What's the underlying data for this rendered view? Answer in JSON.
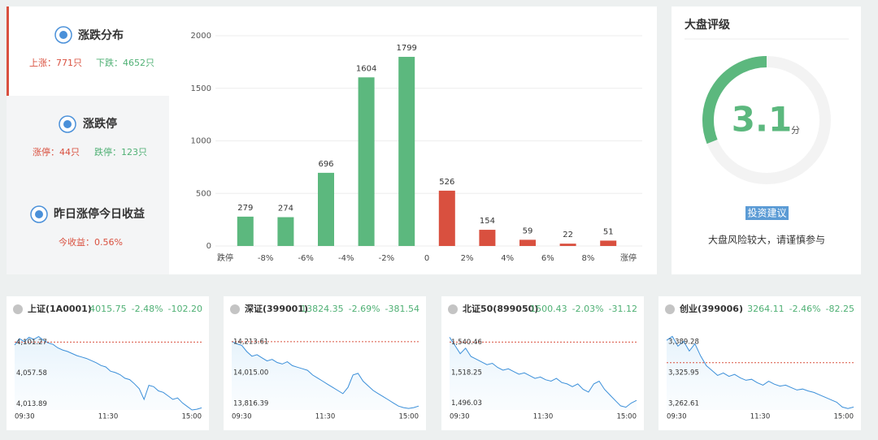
{
  "sidebar": [
    {
      "title": "涨跌分布",
      "stats": [
        "上涨：771只",
        "下跌：4652只"
      ]
    },
    {
      "title": "涨跌停",
      "stats": [
        "涨停：44只",
        "跌停：123只"
      ]
    },
    {
      "title": "昨日涨停今日收益",
      "stats": [
        "今收益：0.56%"
      ]
    }
  ],
  "chart_data": [
    {
      "type": "bar",
      "xtick_labels": [
        "跌停",
        "-8%",
        "-6%",
        "-4%",
        "-2%",
        "0",
        "2%",
        "4%",
        "6%",
        "8%",
        "涨停"
      ],
      "values": [
        279,
        274,
        696,
        1604,
        1799,
        526,
        154,
        59,
        22,
        51
      ],
      "colors": [
        "#5cb87e",
        "#5cb87e",
        "#5cb87e",
        "#5cb87e",
        "#5cb87e",
        "#d9503f",
        "#d9503f",
        "#d9503f",
        "#d9503f",
        "#d9503f"
      ],
      "ylim": [
        0,
        2000
      ],
      "yticks": [
        0,
        500,
        1000,
        1500,
        2000
      ],
      "grid": true
    },
    {
      "type": "gauge",
      "title": "大盘评级",
      "value": 3.1,
      "unit": "分",
      "range": [
        0,
        10
      ],
      "color": "#5cb87e",
      "button": "投资建议",
      "caption": "大盘风险较大，请谨慎参与"
    },
    {
      "type": "line",
      "title": "上证(1A0001)",
      "quote": {
        "values": [
          4015.75,
          -2.48,
          -102.2
        ],
        "value_labels": [
          "4015.75",
          "-2.48%",
          "-102.20"
        ]
      },
      "ylim": [
        4005,
        4112
      ],
      "yticks": [
        {
          "value": 4101.27,
          "label": "4,101.27"
        },
        {
          "value": 4057.58,
          "label": "4,057.58"
        },
        {
          "value": 4013.89,
          "label": "4,013.89"
        }
      ],
      "ref_value": 4101.27,
      "x_labels": [
        "09:30",
        "11:30",
        "15:00"
      ],
      "color": "#3b8fd9",
      "values": [
        4097,
        4106,
        4102,
        4108,
        4105,
        4109,
        4104,
        4100,
        4098,
        4093,
        4090,
        4088,
        4085,
        4082,
        4080,
        4078,
        4075,
        4072,
        4068,
        4066,
        4060,
        4058,
        4055,
        4050,
        4048,
        4042,
        4035,
        4020,
        4040,
        4038,
        4032,
        4030,
        4025,
        4020,
        4022,
        4015,
        4010,
        4005,
        4006,
        4008
      ]
    },
    {
      "type": "line",
      "title": "深证(399001)",
      "quote": {
        "values": [
          13824.35,
          -2.69,
          -381.54
        ],
        "value_labels": [
          "13824.35",
          "-2.69%",
          "-381.54"
        ]
      },
      "ylim": [
        13775,
        14260
      ],
      "yticks": [
        {
          "value": 14213.61,
          "label": "14,213.61"
        },
        {
          "value": 14015,
          "label": "14,015.00"
        },
        {
          "value": 13816.39,
          "label": "13,816.39"
        }
      ],
      "ref_value": 14213.61,
      "x_labels": [
        "09:30",
        "11:30",
        "15:00"
      ],
      "color": "#3b8fd9",
      "values": [
        14215,
        14200,
        14190,
        14150,
        14120,
        14130,
        14110,
        14090,
        14100,
        14080,
        14070,
        14085,
        14060,
        14050,
        14040,
        14030,
        14000,
        13980,
        13960,
        13940,
        13920,
        13900,
        13880,
        13920,
        14000,
        14010,
        13960,
        13930,
        13900,
        13880,
        13860,
        13840,
        13820,
        13800,
        13790,
        13785,
        13790,
        13800
      ]
    },
    {
      "type": "line",
      "title": "北证50(899050)",
      "quote": {
        "values": [
          1500.43,
          -2.03,
          -31.12
        ],
        "value_labels": [
          "1500.43",
          "-2.03%",
          "-31.12"
        ]
      },
      "ylim": [
        1491,
        1546
      ],
      "yticks": [
        {
          "value": 1540.46,
          "label": "1,540.46"
        },
        {
          "value": 1518.25,
          "label": "1,518.25"
        },
        {
          "value": 1496.03,
          "label": "1,496.03"
        }
      ],
      "ref_value": 1540.46,
      "x_labels": [
        "09:30",
        "11:30",
        "15:00"
      ],
      "color": "#3b8fd9",
      "values": [
        1544,
        1538,
        1532,
        1536,
        1530,
        1528,
        1526,
        1524,
        1525,
        1522,
        1520,
        1521,
        1519,
        1517,
        1518,
        1516,
        1514,
        1515,
        1513,
        1512,
        1514,
        1511,
        1510,
        1508,
        1510,
        1506,
        1504,
        1510,
        1512,
        1506,
        1502,
        1498,
        1494,
        1493,
        1496,
        1498
      ]
    },
    {
      "type": "line",
      "title": "创业(399006)",
      "quote": {
        "values": [
          3264.11,
          -2.46,
          -82.25
        ],
        "value_labels": [
          "3264.11",
          "-2.46%",
          "-82.25"
        ]
      },
      "ylim": [
        3249,
        3404
      ],
      "yticks": [
        {
          "value": 3389.28,
          "label": "3,389.28"
        },
        {
          "value": 3325.95,
          "label": "3,325.95"
        },
        {
          "value": 3262.61,
          "label": "3,262.61"
        }
      ],
      "ref_value": 3346,
      "x_labels": [
        "09:30",
        "11:30",
        "15:00"
      ],
      "color": "#3b8fd9",
      "values": [
        3392,
        3400,
        3380,
        3390,
        3370,
        3385,
        3360,
        3340,
        3330,
        3320,
        3325,
        3318,
        3322,
        3315,
        3310,
        3312,
        3305,
        3300,
        3308,
        3302,
        3298,
        3300,
        3295,
        3290,
        3292,
        3288,
        3285,
        3280,
        3275,
        3270,
        3265,
        3255,
        3252,
        3255
      ]
    }
  ]
}
